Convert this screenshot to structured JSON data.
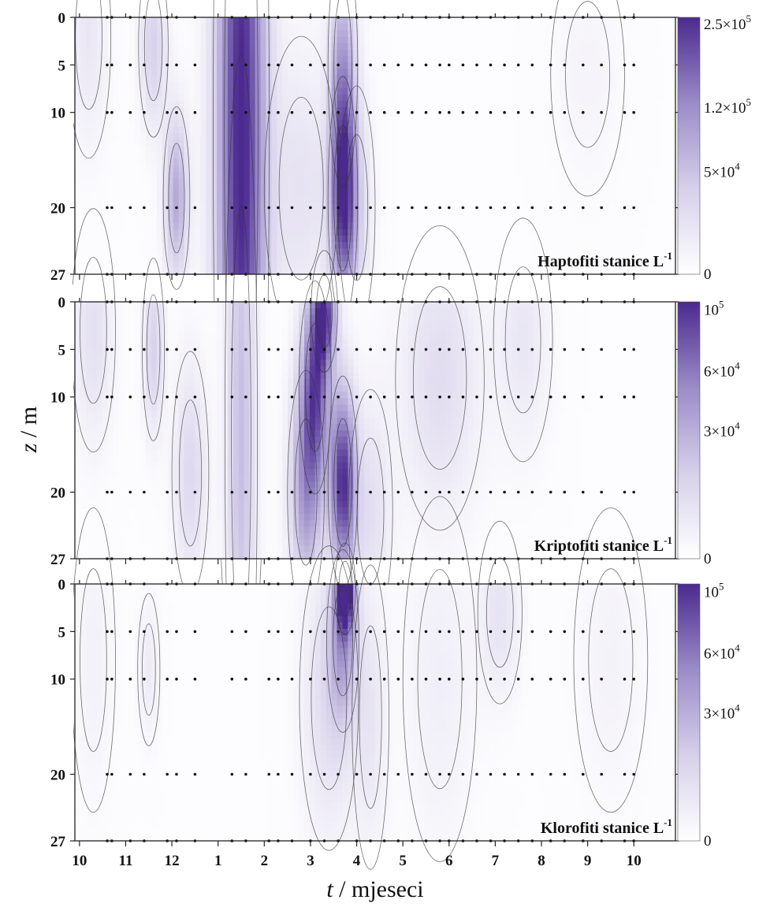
{
  "chart_data": {
    "type": "heatmap",
    "xlabel_var": "t",
    "xlabel_unit": "mjeseci",
    "ylabel_var": "z",
    "ylabel_unit": "m",
    "x_ticks": [
      "10",
      "11",
      "12",
      "1",
      "2",
      "3",
      "4",
      "5",
      "6",
      "7",
      "8",
      "9",
      "10"
    ],
    "x_range_months": [
      9.9,
      22.9
    ],
    "y_ticks": [
      0,
      5,
      10,
      20,
      27
    ],
    "y_range": [
      0,
      27
    ],
    "sampling_depths": [
      0,
      5,
      10,
      20,
      27
    ],
    "sampling_times": [
      10.6,
      10.7,
      11.1,
      11.4,
      11.9,
      12.1,
      12.5,
      13.3,
      13.6,
      14.1,
      14.3,
      14.6,
      15.0,
      15.3,
      15.6,
      16.0,
      16.3,
      16.6,
      16.9,
      17.2,
      17.5,
      17.8,
      18.0,
      18.3,
      18.6,
      18.9,
      19.2,
      19.5,
      19.8,
      20.2,
      20.5,
      20.9,
      21.3,
      21.8,
      22.0
    ],
    "colormap": [
      "#ffffff",
      "#d6d0ea",
      "#9a8cc8",
      "#4b2a8f"
    ],
    "panels": [
      {
        "label_main": "Haptofiti stanice L",
        "label_sup": "-1",
        "colorbar_ticks": [
          {
            "value": 0,
            "label_base": "0",
            "label_exp": ""
          },
          {
            "value": 50000,
            "label_base": "5×10",
            "label_exp": "4"
          },
          {
            "value": 120000,
            "label_base": "1.2×10",
            "label_exp": "5"
          },
          {
            "value": 250000,
            "label_base": "2.5×10",
            "label_exp": "5"
          }
        ],
        "colorbar_max": 260000,
        "hotspots": [
          {
            "t": 13.5,
            "z": 12,
            "amp": 1.0,
            "wt": 0.38,
            "wz": 40
          },
          {
            "t": 15.7,
            "z": 19,
            "amp": 0.85,
            "wt": 0.2,
            "wz": 8
          },
          {
            "t": 15.7,
            "z": 5,
            "amp": 0.45,
            "wt": 0.2,
            "wz": 8
          },
          {
            "t": 12.1,
            "z": 19,
            "amp": 0.5,
            "wt": 0.18,
            "wz": 6
          },
          {
            "t": 11.6,
            "z": 3,
            "amp": 0.3,
            "wt": 0.2,
            "wz": 6
          },
          {
            "t": 10.2,
            "z": 2,
            "amp": 0.15,
            "wt": 0.3,
            "wz": 8
          },
          {
            "t": 14.8,
            "z": 18,
            "amp": 0.18,
            "wt": 0.5,
            "wz": 10
          },
          {
            "t": 16.0,
            "z": 20,
            "amp": 0.22,
            "wt": 0.25,
            "wz": 8
          },
          {
            "t": 21.0,
            "z": 6,
            "amp": 0.06,
            "wt": 0.5,
            "wz": 8
          }
        ]
      },
      {
        "label_main": "Kriptofiti stanice L",
        "label_sup": "-1",
        "colorbar_ticks": [
          {
            "value": 0,
            "label_base": "0",
            "label_exp": ""
          },
          {
            "value": 30000,
            "label_base": "3×10",
            "label_exp": "4"
          },
          {
            "value": 60000,
            "label_base": "6×10",
            "label_exp": "4"
          },
          {
            "value": 100000,
            "label_base": "10",
            "label_exp": "5"
          }
        ],
        "colorbar_max": 105000,
        "hotspots": [
          {
            "t": 15.7,
            "z": 19,
            "amp": 0.95,
            "wt": 0.2,
            "wz": 7
          },
          {
            "t": 15.1,
            "z": 9,
            "amp": 0.75,
            "wt": 0.22,
            "wz": 7
          },
          {
            "t": 15.3,
            "z": 1,
            "amp": 0.8,
            "wt": 0.18,
            "wz": 4
          },
          {
            "t": 14.9,
            "z": 20,
            "amp": 0.55,
            "wt": 0.25,
            "wz": 8
          },
          {
            "t": 13.5,
            "z": 14,
            "amp": 0.4,
            "wt": 0.22,
            "wz": 25
          },
          {
            "t": 12.4,
            "z": 18,
            "amp": 0.25,
            "wt": 0.25,
            "wz": 8
          },
          {
            "t": 11.6,
            "z": 5,
            "amp": 0.3,
            "wt": 0.15,
            "wz": 6
          },
          {
            "t": 10.3,
            "z": 3,
            "amp": 0.2,
            "wt": 0.3,
            "wz": 8
          },
          {
            "t": 17.8,
            "z": 8,
            "amp": 0.22,
            "wt": 0.6,
            "wz": 10
          },
          {
            "t": 19.6,
            "z": 4,
            "amp": 0.15,
            "wt": 0.4,
            "wz": 8
          },
          {
            "t": 16.3,
            "z": 22,
            "amp": 0.2,
            "wt": 0.3,
            "wz": 8
          }
        ]
      },
      {
        "label_main": "Klorofiti stanice L",
        "label_sup": "-1",
        "colorbar_ticks": [
          {
            "value": 0,
            "label_base": "0",
            "label_exp": ""
          },
          {
            "value": 30000,
            "label_base": "3×10",
            "label_exp": "4"
          },
          {
            "value": 60000,
            "label_base": "6×10",
            "label_exp": "4"
          },
          {
            "value": 100000,
            "label_base": "10",
            "label_exp": "5"
          }
        ],
        "colorbar_max": 105000,
        "hotspots": [
          {
            "t": 15.75,
            "z": 0.5,
            "amp": 1.0,
            "wt": 0.14,
            "wz": 3
          },
          {
            "t": 15.7,
            "z": 6,
            "amp": 0.45,
            "wt": 0.22,
            "wz": 6
          },
          {
            "t": 15.4,
            "z": 12,
            "amp": 0.22,
            "wt": 0.4,
            "wz": 10
          },
          {
            "t": 16.3,
            "z": 14,
            "amp": 0.15,
            "wt": 0.25,
            "wz": 10
          },
          {
            "t": 19.1,
            "z": 3,
            "amp": 0.18,
            "wt": 0.3,
            "wz": 6
          },
          {
            "t": 11.5,
            "z": 9,
            "amp": 0.12,
            "wt": 0.15,
            "wz": 5
          },
          {
            "t": 10.3,
            "z": 8,
            "amp": 0.08,
            "wt": 0.3,
            "wz": 10
          },
          {
            "t": 17.8,
            "z": 10,
            "amp": 0.1,
            "wt": 0.5,
            "wz": 12
          },
          {
            "t": 21.5,
            "z": 8,
            "amp": 0.07,
            "wt": 0.5,
            "wz": 10
          }
        ]
      }
    ]
  }
}
